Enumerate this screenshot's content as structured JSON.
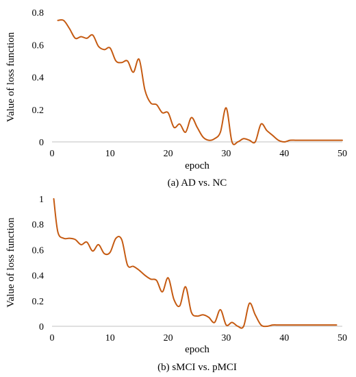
{
  "chart_data": [
    {
      "type": "line",
      "caption": "(a) AD vs. NC",
      "xlabel": "epoch",
      "ylabel": "Value of loss function",
      "xlim": [
        0,
        50
      ],
      "ylim": [
        0,
        0.8
      ],
      "xticks": [
        0,
        10,
        20,
        30,
        40,
        50
      ],
      "yticks": [
        0,
        0.2,
        0.4,
        0.6,
        0.8
      ],
      "grid": false,
      "legend": "none",
      "color": "#C55A11",
      "series": [
        {
          "x": [
            1,
            2,
            3,
            4,
            5,
            6,
            7,
            8,
            9,
            10,
            11,
            12,
            13,
            14,
            15,
            16,
            17,
            18,
            19,
            20,
            21,
            22,
            23,
            24,
            25,
            26,
            27,
            28,
            29,
            30,
            31,
            32,
            33,
            34,
            35,
            36,
            37,
            38,
            39,
            40,
            41,
            42,
            43,
            44,
            45,
            46,
            47,
            48,
            49,
            50
          ],
          "y": [
            0.75,
            0.75,
            0.7,
            0.64,
            0.65,
            0.64,
            0.66,
            0.59,
            0.57,
            0.58,
            0.5,
            0.49,
            0.5,
            0.43,
            0.51,
            0.32,
            0.24,
            0.23,
            0.18,
            0.18,
            0.09,
            0.11,
            0.06,
            0.15,
            0.09,
            0.03,
            0.01,
            0.02,
            0.06,
            0.21,
            0.0,
            0.0,
            0.02,
            0.01,
            0.0,
            0.11,
            0.07,
            0.04,
            0.01,
            0.0,
            0.01,
            0.01,
            0.01,
            0.01,
            0.01,
            0.01,
            0.01,
            0.01,
            0.01,
            0.01
          ]
        }
      ]
    },
    {
      "type": "line",
      "caption": "(b) sMCI vs. pMCI",
      "xlabel": "epoch",
      "ylabel": "Value of loss function",
      "xlim": [
        0,
        50
      ],
      "ylim": [
        0,
        1
      ],
      "xticks": [
        0,
        10,
        20,
        30,
        40,
        50
      ],
      "yticks": [
        0,
        0.2,
        0.4,
        0.6,
        0.8,
        1
      ],
      "grid": false,
      "legend": "none",
      "color": "#C55A11",
      "series": [
        {
          "x": [
            0.3,
            1,
            2,
            3,
            4,
            5,
            6,
            7,
            8,
            9,
            10,
            11,
            12,
            13,
            14,
            15,
            16,
            17,
            18,
            19,
            20,
            21,
            22,
            23,
            24,
            25,
            26,
            27,
            28,
            29,
            30,
            31,
            32,
            33,
            34,
            35,
            36,
            37,
            38,
            39,
            40,
            41,
            42,
            43,
            44,
            45,
            46,
            47,
            48,
            49
          ],
          "y": [
            1.0,
            0.74,
            0.69,
            0.69,
            0.68,
            0.64,
            0.66,
            0.59,
            0.64,
            0.57,
            0.58,
            0.69,
            0.68,
            0.48,
            0.47,
            0.44,
            0.4,
            0.37,
            0.36,
            0.27,
            0.38,
            0.21,
            0.16,
            0.31,
            0.11,
            0.08,
            0.09,
            0.07,
            0.03,
            0.13,
            0.01,
            0.03,
            0.0,
            0.0,
            0.18,
            0.09,
            0.01,
            0.0,
            0.01,
            0.01,
            0.01,
            0.01,
            0.01,
            0.01,
            0.01,
            0.01,
            0.01,
            0.01,
            0.01,
            0.01
          ]
        }
      ]
    }
  ]
}
